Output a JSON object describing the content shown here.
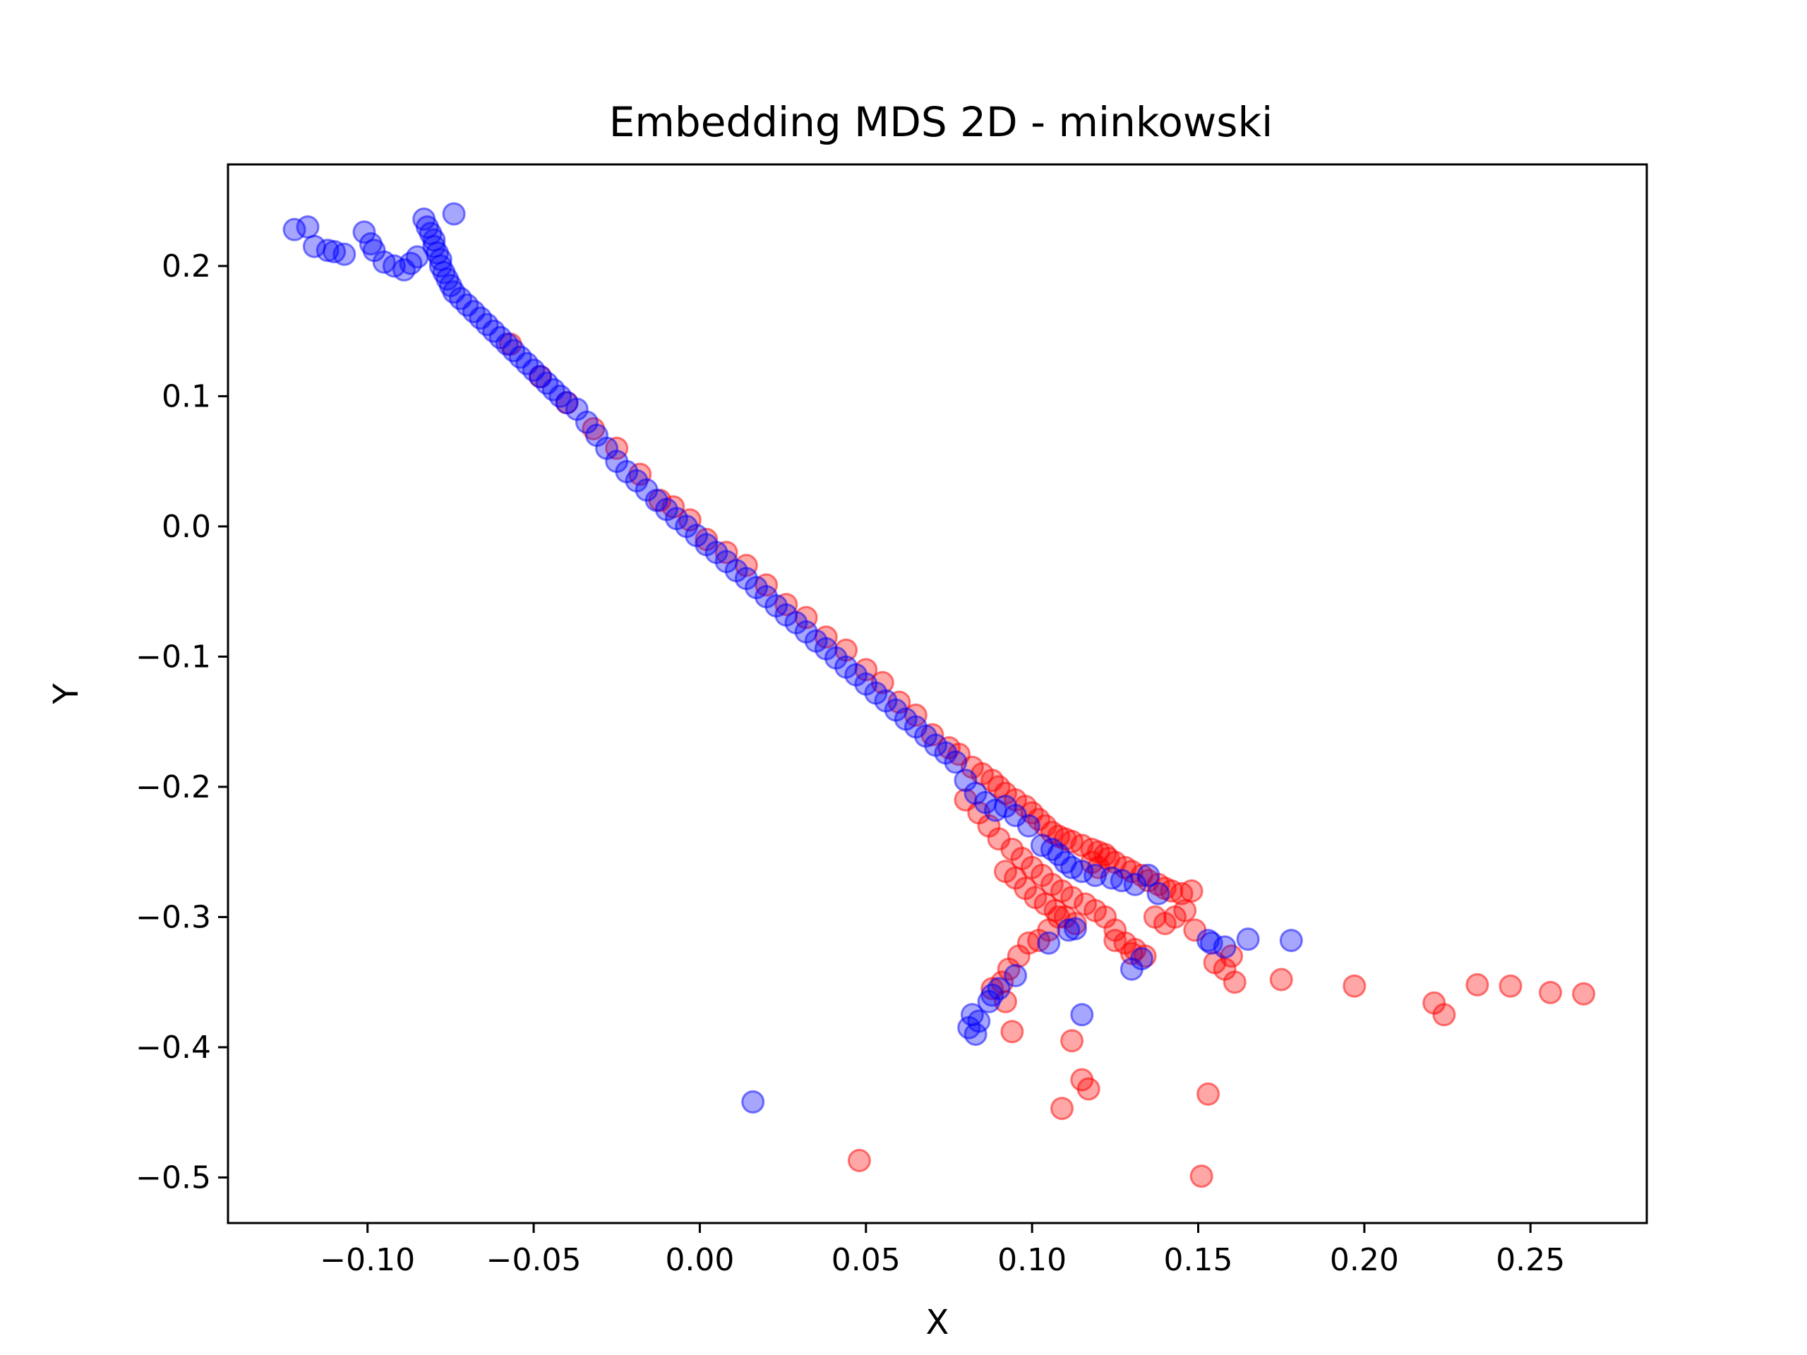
{
  "chart_data": {
    "type": "scatter",
    "title": "Embedding MDS 2D - minkowski",
    "xlabel": "X",
    "ylabel": "Y",
    "xlim": [
      -0.142,
      0.285
    ],
    "ylim": [
      -0.535,
      0.278
    ],
    "xticks": [
      -0.1,
      -0.05,
      0.0,
      0.05,
      0.1,
      0.15,
      0.2,
      0.25
    ],
    "xtick_labels": [
      "−0.10",
      "−0.05",
      "0.00",
      "0.05",
      "0.10",
      "0.15",
      "0.20",
      "0.25"
    ],
    "yticks": [
      0.2,
      0.1,
      0.0,
      -0.1,
      -0.2,
      -0.3,
      -0.4,
      -0.5
    ],
    "ytick_labels": [
      "0.2",
      "0.1",
      "0.0",
      "−0.1",
      "−0.2",
      "−0.3",
      "−0.4",
      "−0.5"
    ],
    "grid": false,
    "legend": "none",
    "marker_alpha": 0.35,
    "series": [
      {
        "color": "#ff0000",
        "x": [
          -0.057,
          -0.048,
          -0.04,
          -0.032,
          -0.025,
          -0.018,
          -0.012,
          -0.008,
          -0.003,
          0.002,
          0.008,
          0.014,
          0.02,
          0.026,
          0.032,
          0.038,
          0.044,
          0.05,
          0.055,
          0.06,
          0.065,
          0.07,
          0.075,
          0.078,
          0.082,
          0.085,
          0.088,
          0.09,
          0.092,
          0.095,
          0.098,
          0.1,
          0.102,
          0.104,
          0.106,
          0.108,
          0.11,
          0.112,
          0.115,
          0.118,
          0.12,
          0.123,
          0.125,
          0.128,
          0.13,
          0.133,
          0.135,
          0.138,
          0.14,
          0.142,
          0.145,
          0.148,
          0.08,
          0.084,
          0.087,
          0.09,
          0.094,
          0.097,
          0.1,
          0.103,
          0.106,
          0.109,
          0.112,
          0.092,
          0.095,
          0.098,
          0.101,
          0.104,
          0.107,
          0.11,
          0.113,
          0.116,
          0.119,
          0.122,
          0.125,
          0.128,
          0.131,
          0.134,
          0.137,
          0.14,
          0.143,
          0.146,
          0.149,
          0.155,
          0.158,
          0.16,
          0.161,
          0.175,
          0.197,
          0.221,
          0.224,
          0.234,
          0.244,
          0.256,
          0.266,
          0.088,
          0.091,
          0.093,
          0.096,
          0.099,
          0.102,
          0.105,
          0.108,
          0.092,
          0.094,
          0.112,
          0.115,
          0.117,
          0.109,
          0.153,
          0.048,
          0.151,
          0.125,
          0.13,
          0.118,
          0.12,
          0.122
        ],
        "y": [
          0.14,
          0.115,
          0.095,
          0.075,
          0.06,
          0.04,
          0.02,
          0.015,
          0.005,
          -0.01,
          -0.02,
          -0.03,
          -0.045,
          -0.06,
          -0.07,
          -0.085,
          -0.095,
          -0.11,
          -0.12,
          -0.135,
          -0.145,
          -0.16,
          -0.17,
          -0.175,
          -0.185,
          -0.19,
          -0.195,
          -0.2,
          -0.205,
          -0.21,
          -0.215,
          -0.22,
          -0.225,
          -0.23,
          -0.235,
          -0.238,
          -0.24,
          -0.242,
          -0.245,
          -0.248,
          -0.25,
          -0.255,
          -0.258,
          -0.262,
          -0.265,
          -0.268,
          -0.272,
          -0.275,
          -0.278,
          -0.28,
          -0.282,
          -0.28,
          -0.21,
          -0.22,
          -0.23,
          -0.24,
          -0.248,
          -0.255,
          -0.262,
          -0.268,
          -0.275,
          -0.28,
          -0.285,
          -0.265,
          -0.27,
          -0.278,
          -0.285,
          -0.29,
          -0.295,
          -0.3,
          -0.305,
          -0.29,
          -0.295,
          -0.3,
          -0.31,
          -0.32,
          -0.325,
          -0.33,
          -0.3,
          -0.305,
          -0.3,
          -0.295,
          -0.31,
          -0.335,
          -0.34,
          -0.33,
          -0.35,
          -0.348,
          -0.353,
          -0.366,
          -0.375,
          -0.352,
          -0.353,
          -0.358,
          -0.359,
          -0.355,
          -0.35,
          -0.34,
          -0.33,
          -0.32,
          -0.318,
          -0.31,
          -0.3,
          -0.365,
          -0.388,
          -0.395,
          -0.425,
          -0.432,
          -0.447,
          -0.436,
          -0.487,
          -0.499,
          -0.318,
          -0.328,
          -0.258,
          -0.262,
          -0.252
        ]
      },
      {
        "color": "#0000ff",
        "x": [
          -0.122,
          -0.118,
          -0.116,
          -0.112,
          -0.11,
          -0.107,
          -0.101,
          -0.099,
          -0.098,
          -0.095,
          -0.092,
          -0.089,
          -0.087,
          -0.085,
          -0.083,
          -0.082,
          -0.081,
          -0.08,
          -0.08,
          -0.079,
          -0.078,
          -0.078,
          -0.077,
          -0.076,
          -0.075,
          -0.074,
          -0.072,
          -0.07,
          -0.068,
          -0.066,
          -0.064,
          -0.062,
          -0.06,
          -0.058,
          -0.056,
          -0.054,
          -0.052,
          -0.05,
          -0.048,
          -0.046,
          -0.044,
          -0.042,
          -0.04,
          -0.037,
          -0.034,
          -0.031,
          -0.028,
          -0.025,
          -0.022,
          -0.019,
          -0.016,
          -0.013,
          -0.01,
          -0.007,
          -0.004,
          -0.001,
          0.002,
          0.005,
          0.008,
          0.011,
          0.014,
          0.017,
          0.02,
          0.023,
          0.026,
          0.029,
          0.032,
          0.035,
          0.038,
          0.041,
          0.044,
          0.047,
          0.05,
          0.053,
          0.056,
          0.059,
          0.062,
          0.065,
          0.068,
          0.071,
          0.074,
          0.077,
          0.08,
          0.083,
          0.086,
          0.089,
          0.092,
          0.095,
          0.099,
          0.103,
          0.106,
          0.108,
          0.11,
          0.112,
          0.115,
          0.119,
          0.124,
          0.127,
          0.131,
          0.135,
          0.138,
          0.153,
          0.154,
          0.158,
          0.165,
          0.178,
          0.082,
          0.084,
          0.083,
          0.081,
          0.088,
          0.09,
          0.095,
          0.105,
          0.111,
          0.115,
          0.113,
          0.016,
          0.087,
          0.13,
          0.133,
          -0.074
        ],
        "y": [
          0.228,
          0.23,
          0.215,
          0.212,
          0.211,
          0.209,
          0.226,
          0.217,
          0.212,
          0.203,
          0.2,
          0.197,
          0.202,
          0.207,
          0.236,
          0.23,
          0.225,
          0.22,
          0.215,
          0.21,
          0.205,
          0.2,
          0.195,
          0.19,
          0.185,
          0.18,
          0.175,
          0.17,
          0.165,
          0.16,
          0.155,
          0.15,
          0.145,
          0.14,
          0.135,
          0.13,
          0.125,
          0.12,
          0.115,
          0.11,
          0.105,
          0.1,
          0.095,
          0.09,
          0.08,
          0.07,
          0.06,
          0.05,
          0.042,
          0.035,
          0.028,
          0.02,
          0.013,
          0.006,
          0.0,
          -0.007,
          -0.014,
          -0.02,
          -0.027,
          -0.034,
          -0.04,
          -0.047,
          -0.054,
          -0.061,
          -0.068,
          -0.074,
          -0.081,
          -0.088,
          -0.094,
          -0.101,
          -0.108,
          -0.114,
          -0.121,
          -0.128,
          -0.134,
          -0.141,
          -0.148,
          -0.154,
          -0.161,
          -0.168,
          -0.174,
          -0.181,
          -0.195,
          -0.205,
          -0.212,
          -0.218,
          -0.215,
          -0.222,
          -0.23,
          -0.245,
          -0.248,
          -0.252,
          -0.258,
          -0.262,
          -0.265,
          -0.268,
          -0.27,
          -0.272,
          -0.275,
          -0.268,
          -0.282,
          -0.318,
          -0.32,
          -0.323,
          -0.317,
          -0.318,
          -0.375,
          -0.38,
          -0.39,
          -0.385,
          -0.36,
          -0.355,
          -0.345,
          -0.32,
          -0.31,
          -0.375,
          -0.309,
          -0.442,
          -0.365,
          -0.34,
          -0.332,
          0.24
        ]
      }
    ]
  }
}
